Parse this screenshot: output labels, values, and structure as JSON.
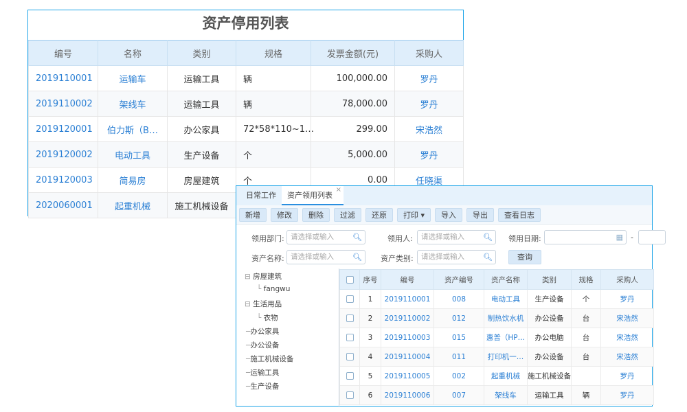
{
  "back_panel": {
    "title": "资产停用列表",
    "columns": [
      "编号",
      "名称",
      "类别",
      "规格",
      "发票金额(元)",
      "采购人"
    ],
    "rows": [
      [
        "2019110001",
        "运输车",
        "运输工具",
        "辆",
        "100,000.00",
        "罗丹"
      ],
      [
        "2019110002",
        "架线车",
        "运输工具",
        "辆",
        "78,000.00",
        "罗丹"
      ],
      [
        "2019120001",
        "伯力斯（B…",
        "办公家具",
        "72*58*110~1…",
        "299.00",
        "宋浩然"
      ],
      [
        "2019120002",
        "电动工具",
        "生产设备",
        "个",
        "5,000.00",
        "罗丹"
      ],
      [
        "2019120003",
        "简易房",
        "房屋建筑",
        "个",
        "0.00",
        "任晓渠"
      ],
      [
        "2020060001",
        "起重机械",
        "施工机械设备",
        "",
        "",
        ""
      ]
    ]
  },
  "front_panel": {
    "tabs": [
      {
        "label": "日常工作"
      },
      {
        "label": "资产领用列表",
        "close": "×"
      }
    ],
    "toolbar": [
      "新增",
      "修改",
      "删除",
      "过滤",
      "还原",
      "打印 ▾",
      "导入",
      "导出",
      "查看日志"
    ],
    "filters": {
      "dept_label": "领用部门:",
      "user_label": "领用人:",
      "date_label": "领用日期:",
      "date_sep": "-",
      "name_label": "资产名称:",
      "type_label": "资产类别:",
      "placeholder": "请选择或输入",
      "query": "查询"
    },
    "tree": [
      "房屋建筑",
      "fangwu",
      "生活用品",
      "衣物",
      "办公家具",
      "办公设备",
      "施工机械设备",
      "运输工具",
      "生产设备"
    ],
    "columns": [
      "序号",
      "编号",
      "资产编号",
      "资产名称",
      "类别",
      "规格",
      "采购人"
    ],
    "rows": [
      [
        "1",
        "2019110001",
        "008",
        "电动工具",
        "生产设备",
        "个",
        "罗丹"
      ],
      [
        "2",
        "2019110002",
        "012",
        "制热饮水机",
        "办公设备",
        "台",
        "宋浩然"
      ],
      [
        "3",
        "2019110003",
        "015",
        "惠普（HP…",
        "办公电脑",
        "台",
        "宋浩然"
      ],
      [
        "4",
        "2019110004",
        "011",
        "打印机一…",
        "办公设备",
        "台",
        "宋浩然"
      ],
      [
        "5",
        "2019110005",
        "002",
        "起重机械",
        "施工机械设备",
        "",
        "罗丹"
      ],
      [
        "6",
        "2019110006",
        "007",
        "架线车",
        "运输工具",
        "辆",
        "罗丹"
      ]
    ]
  }
}
